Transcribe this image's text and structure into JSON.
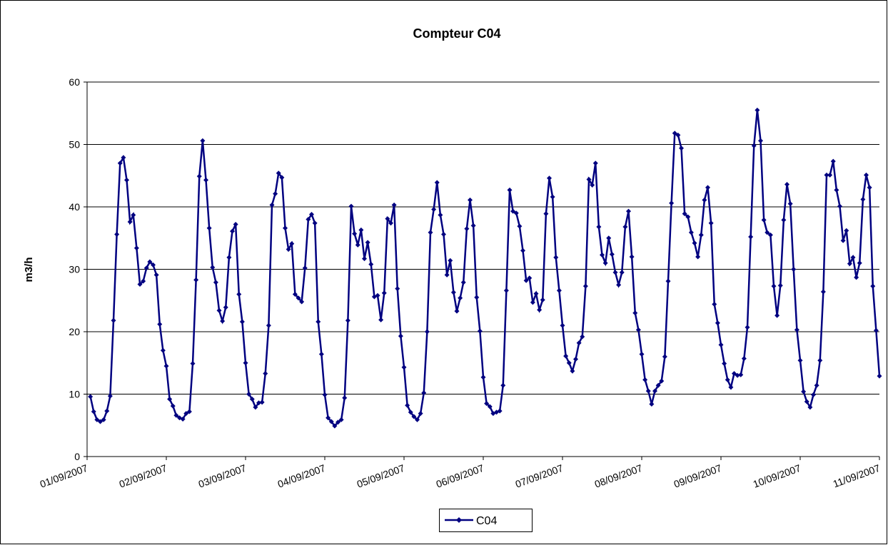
{
  "chart_data": {
    "type": "line",
    "title": "Compteur C04",
    "ylabel": "m3/h",
    "categories": [
      "01/09/2007",
      null,
      null,
      null,
      null,
      null,
      null,
      null,
      null,
      null,
      null,
      null,
      null,
      null,
      null,
      null,
      null,
      null,
      null,
      null,
      null,
      null,
      null,
      null,
      "02/09/2007",
      null,
      null,
      null,
      null,
      null,
      null,
      null,
      null,
      null,
      null,
      null,
      null,
      null,
      null,
      null,
      null,
      null,
      null,
      null,
      null,
      null,
      null,
      null,
      "03/09/2007",
      null,
      null,
      null,
      null,
      null,
      null,
      null,
      null,
      null,
      null,
      null,
      null,
      null,
      null,
      null,
      null,
      null,
      null,
      null,
      null,
      null,
      null,
      null,
      "04/09/2007",
      null,
      null,
      null,
      null,
      null,
      null,
      null,
      null,
      null,
      null,
      null,
      null,
      null,
      null,
      null,
      null,
      null,
      null,
      null,
      null,
      null,
      null,
      null,
      "05/09/2007",
      null,
      null,
      null,
      null,
      null,
      null,
      null,
      null,
      null,
      null,
      null,
      null,
      null,
      null,
      null,
      null,
      null,
      null,
      null,
      null,
      null,
      null,
      null,
      "06/09/2007",
      null,
      null,
      null,
      null,
      null,
      null,
      null,
      null,
      null,
      null,
      null,
      null,
      null,
      null,
      null,
      null,
      null,
      null,
      null,
      null,
      null,
      null,
      null,
      "07/09/2007",
      null,
      null,
      null,
      null,
      null,
      null,
      null,
      null,
      null,
      null,
      null,
      null,
      null,
      null,
      null,
      null,
      null,
      null,
      null,
      null,
      null,
      null,
      null,
      "08/09/2007",
      null,
      null,
      null,
      null,
      null,
      null,
      null,
      null,
      null,
      null,
      null,
      null,
      null,
      null,
      null,
      null,
      null,
      null,
      null,
      null,
      null,
      null,
      null,
      "09/09/2007",
      null,
      null,
      null,
      null,
      null,
      null,
      null,
      null,
      null,
      null,
      null,
      null,
      null,
      null,
      null,
      null,
      null,
      null,
      null,
      null,
      null,
      null,
      null,
      "10/09/2007",
      null,
      null,
      null,
      null,
      null,
      null,
      null,
      null,
      null,
      null,
      null,
      null,
      null,
      null,
      null,
      null,
      null,
      null,
      null,
      null,
      null,
      null,
      null,
      "11/09/2007"
    ],
    "series": [
      {
        "name": "C04",
        "color": "#000080",
        "values": [
          null,
          9.6,
          7.2,
          5.9,
          5.6,
          5.9,
          7.3,
          9.7,
          21.8,
          35.6,
          47,
          47.9,
          44.3,
          37.6,
          38.7,
          33.4,
          27.6,
          28.1,
          30.2,
          31.2,
          30.7,
          29.1,
          21.2,
          17,
          14.5,
          9.2,
          8.1,
          6.6,
          6.2,
          6.0,
          6.9,
          7.2,
          14.9,
          28.3,
          44.9,
          50.6,
          44.3,
          36.6,
          30.3,
          27.9,
          23.4,
          21.7,
          23.9,
          31.9,
          36.1,
          37.2,
          26,
          21.6,
          15,
          10,
          9.2,
          7.9,
          8.6,
          8.7,
          13.3,
          21,
          40.3,
          42.1,
          45.4,
          44.7,
          36.6,
          33.2,
          34.1,
          26,
          25.4,
          24.8,
          30.2,
          38,
          38.8,
          37.4,
          21.6,
          16.4,
          9.9,
          6.2,
          5.6,
          4.9,
          5.5,
          5.9,
          9.4,
          21.8,
          40.1,
          35.7,
          33.9,
          36.3,
          31.7,
          34.3,
          30.8,
          25.6,
          25.8,
          21.9,
          26.2,
          38.1,
          37.4,
          40.3,
          26.9,
          19.3,
          14.3,
          8.2,
          7.1,
          6.4,
          5.9,
          6.9,
          10.2,
          20,
          35.9,
          39.6,
          43.9,
          38.7,
          35.6,
          29.1,
          31.4,
          26.3,
          23.3,
          25.4,
          27.9,
          36.5,
          41.1,
          37,
          25.5,
          20.1,
          12.7,
          8.5,
          8,
          6.9,
          7.1,
          7.3,
          11.4,
          26.6,
          42.7,
          39.3,
          39,
          36.9,
          33,
          28.2,
          28.6,
          24.7,
          26.1,
          23.5,
          25.1,
          38.9,
          44.6,
          41.6,
          31.9,
          26.6,
          21,
          16.1,
          15,
          13.7,
          15.6,
          18.2,
          19.2,
          27.3,
          44.4,
          43.5,
          47,
          36.8,
          32.3,
          31,
          35,
          32.4,
          29.5,
          27.5,
          29.5,
          36.8,
          39.3,
          32,
          23,
          20.3,
          16.4,
          12.3,
          10.5,
          8.4,
          10.5,
          11.4,
          12.1,
          16,
          28.1,
          40.6,
          51.8,
          51.5,
          49.4,
          38.9,
          38.4,
          35.9,
          34.2,
          32,
          35.5,
          41.1,
          43.1,
          37.4,
          24.4,
          21.4,
          17.9,
          14.9,
          12.3,
          11.1,
          13.3,
          13,
          13.1,
          15.7,
          20.7,
          35.2,
          49.8,
          55.5,
          50.6,
          37.9,
          35.9,
          35.5,
          27.3,
          22.6,
          27.4,
          37.9,
          43.6,
          40.5,
          30,
          20.3,
          15.4,
          10.4,
          8.8,
          7.9,
          9.9,
          11.4,
          15.4,
          26.4,
          45.1,
          45.1,
          47.3,
          42.7,
          40.1,
          34.6,
          36.2,
          30.9,
          31.9,
          28.7,
          31,
          41.2,
          45.1,
          43.1,
          27.3,
          20.2,
          12.9
        ]
      }
    ],
    "ylim": [
      0,
      60
    ],
    "yticks": [
      0,
      10,
      20,
      30,
      40,
      50,
      60
    ],
    "grid": true,
    "legend": "bottom"
  }
}
